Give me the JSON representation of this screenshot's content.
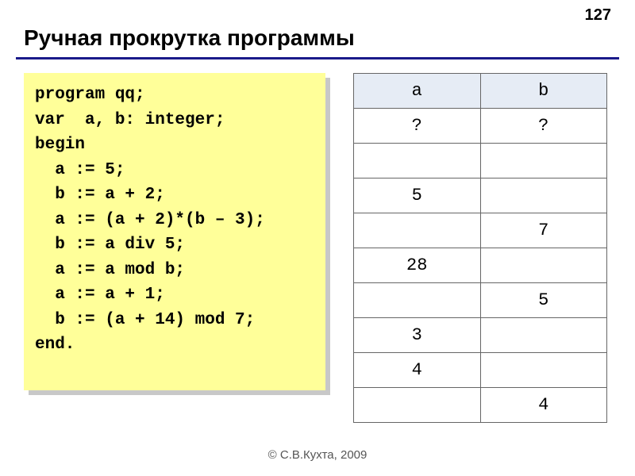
{
  "page_number": "127",
  "title": "Ручная прокрутка программы",
  "code": {
    "font_family": "Courier New",
    "font_size_pt": 16,
    "background_color": "#ffff99",
    "shadow_color": "#c8c8c8",
    "lines": [
      "program qq;",
      "var  a, b: integer;",
      "begin",
      "  a := 5;",
      "  b := a + 2;",
      "  a := (a + 2)*(b – 3);",
      "  b := a div 5;",
      "  a := a mod b;",
      "  a := a + 1;",
      "  b := (a + 14) mod 7;",
      "end."
    ]
  },
  "trace": {
    "border_color": "#666666",
    "header_bg": "#e6ecf5",
    "cell_bg": "#ffffff",
    "font_family": "Courier New",
    "font_size_pt": 16,
    "columns": [
      "a",
      "b"
    ],
    "rows": [
      [
        "?",
        "?"
      ],
      [
        "",
        ""
      ],
      [
        "5",
        ""
      ],
      [
        "",
        "7"
      ],
      [
        "28",
        ""
      ],
      [
        "",
        "5"
      ],
      [
        "3",
        ""
      ],
      [
        "4",
        ""
      ],
      [
        "",
        "4"
      ]
    ]
  },
  "footer": "© С.В.Кухта, 2009",
  "colors": {
    "title_underline": "#1a1a8a",
    "text": "#000000",
    "footer_text": "#555555",
    "page_bg": "#ffffff"
  }
}
